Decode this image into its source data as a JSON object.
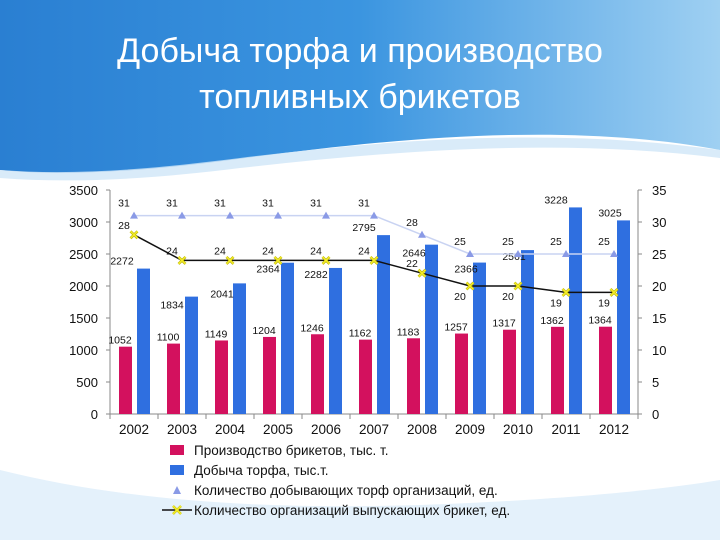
{
  "title": "Добыча торфа и производство топливных брикетов",
  "colors": {
    "briquettes": "#d3115e",
    "peat": "#2f6fe0",
    "extracting_orgs": "#8a9ae6",
    "producing_orgs": "#f3ec2a",
    "line_dark": "#111111",
    "header": "#2f86d6"
  },
  "legend": [
    {
      "label": "Производство брикетов, тыс. т.",
      "icon": "magenta-square"
    },
    {
      "label": "Добыча торфа, тыс.т.",
      "icon": "blue-square"
    },
    {
      "label": "Количество добывающих торф организаций, ед.",
      "icon": "triangle-marker"
    },
    {
      "label": "Количество организаций выпускающих брикет, ед.",
      "icon": "x-marker-line"
    }
  ],
  "chart_data": {
    "type": "bar",
    "categories": [
      "2002",
      "2003",
      "2004",
      "2005",
      "2006",
      "2007",
      "2008",
      "2009",
      "2010",
      "2011",
      "2012"
    ],
    "ylim": [
      0,
      3500
    ],
    "y_ticks": [
      "0",
      "500",
      "1000",
      "1500",
      "2000",
      "2500",
      "3000",
      "3500"
    ],
    "y2lim": [
      0,
      35
    ],
    "y2_ticks": [
      "0",
      "5",
      "10",
      "15",
      "20",
      "25",
      "30",
      "35"
    ],
    "grid": false,
    "legend_position": "bottom",
    "series": [
      {
        "name": "Производство брикетов, тыс. т.",
        "type": "bar",
        "axis": "left",
        "values": [
          1052,
          1100,
          1149,
          1204,
          1246,
          1162,
          1183,
          1257,
          1317,
          1362,
          1364
        ]
      },
      {
        "name": "Добыча торфа, тыс.т.",
        "type": "bar",
        "axis": "left",
        "values": [
          2272,
          1834,
          2041,
          2364,
          2282,
          2795,
          2646,
          2366,
          2561,
          3228,
          3025
        ]
      },
      {
        "name": "Количество добывающих торф организаций, ед.",
        "type": "line",
        "axis": "right",
        "values": [
          31,
          31,
          31,
          31,
          31,
          31,
          28,
          25,
          25,
          25,
          25
        ]
      },
      {
        "name": "Количество организаций выпускающих брикет, ед.",
        "type": "line",
        "axis": "right",
        "values": [
          28,
          24,
          24,
          24,
          24,
          24,
          22,
          20,
          20,
          19,
          19
        ]
      }
    ]
  }
}
